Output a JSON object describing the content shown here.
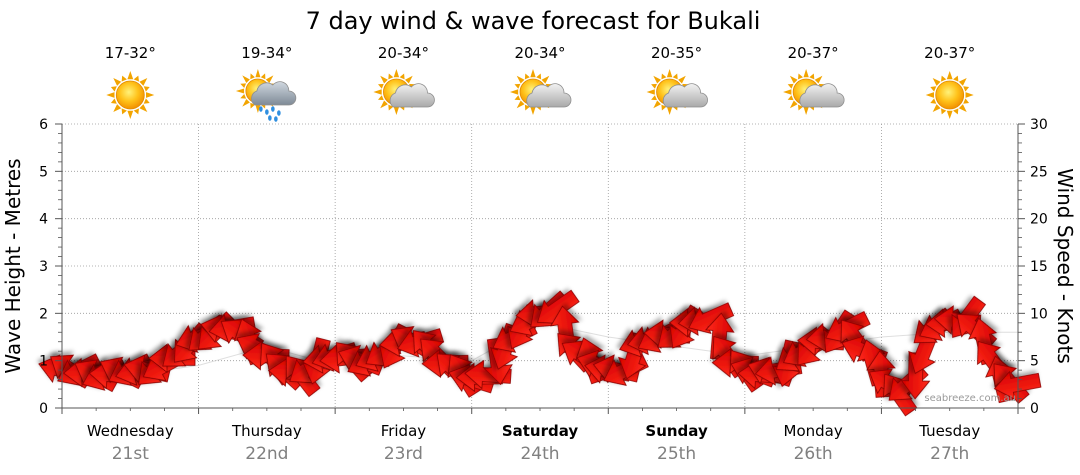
{
  "chart_data": {
    "type": "line",
    "title": "7 day wind & wave forecast for Bukali",
    "ylabel_left": "Wave Height - Metres",
    "ylabel_right": "Wind Speed - Knots",
    "ylim_left": [
      0,
      6
    ],
    "ylim_right": [
      0,
      30
    ],
    "yticks_left": [
      "0",
      "1",
      "2",
      "3",
      "4",
      "5",
      "6"
    ],
    "yticks_right": [
      "0",
      "5",
      "10",
      "15",
      "20",
      "25",
      "30"
    ],
    "grid": true,
    "credit": "seabreeze.com.au",
    "days": [
      {
        "name": "Wednesday",
        "date": "21st",
        "temp": "17-32°",
        "weather": "sunny-icon",
        "bold": false
      },
      {
        "name": "Thursday",
        "date": "22nd",
        "temp": "19-34°",
        "weather": "rain-cloud-icon",
        "bold": false
      },
      {
        "name": "Friday",
        "date": "23rd",
        "temp": "20-34°",
        "weather": "partly-cloudy-icon",
        "bold": false
      },
      {
        "name": "Saturday",
        "date": "24th",
        "temp": "20-34°",
        "weather": "partly-cloudy-icon",
        "bold": true
      },
      {
        "name": "Sunday",
        "date": "25th",
        "temp": "20-35°",
        "weather": "partly-cloudy-icon",
        "bold": true
      },
      {
        "name": "Monday",
        "date": "26th",
        "temp": "20-37°",
        "weather": "partly-cloudy-icon",
        "bold": false
      },
      {
        "name": "Tuesday",
        "date": "27th",
        "temp": "20-37°",
        "weather": "sunny-icon",
        "bold": false
      }
    ],
    "series": [
      {
        "kind": "wave",
        "x_hours": [
          0,
          12,
          24,
          36,
          48,
          60,
          72,
          84,
          96,
          108,
          120,
          132,
          144,
          156,
          168
        ],
        "values": [
          0.7,
          0.7,
          0.9,
          1.3,
          0.9,
          1.1,
          1.0,
          1.8,
          1.5,
          1.3,
          1.1,
          1.3,
          1.5,
          1.6,
          1.6
        ]
      },
      {
        "kind": "wind",
        "color": "#ff0000",
        "x_hours": [
          0,
          3,
          6,
          9,
          12,
          15,
          18,
          21,
          24,
          27,
          30,
          33,
          36,
          39,
          42,
          45,
          48,
          51,
          54,
          57,
          60,
          63,
          66,
          69,
          72,
          75,
          78,
          81,
          84,
          87,
          90,
          93,
          96,
          99,
          102,
          105,
          108,
          111,
          114,
          117,
          120,
          123,
          126,
          129,
          132,
          135,
          138,
          141,
          144,
          147,
          150,
          153,
          156,
          159,
          162,
          165,
          168
        ],
        "values": [
          4,
          4,
          3.5,
          3.5,
          4,
          4,
          4.5,
          6,
          7.5,
          8,
          8.5,
          7,
          5.5,
          4,
          3.5,
          5,
          5.5,
          5,
          5,
          6,
          7,
          7,
          5.5,
          4,
          3,
          3.5,
          6.5,
          8.5,
          10,
          10.5,
          6,
          5,
          4,
          4,
          7,
          7.5,
          8,
          9,
          9.5,
          5.5,
          4,
          3.5,
          4,
          5.5,
          6.5,
          7.5,
          8.5,
          6,
          3.5,
          1.5,
          3.5,
          8.5,
          9,
          9.5,
          7,
          3,
          2.5
        ]
      }
    ]
  }
}
